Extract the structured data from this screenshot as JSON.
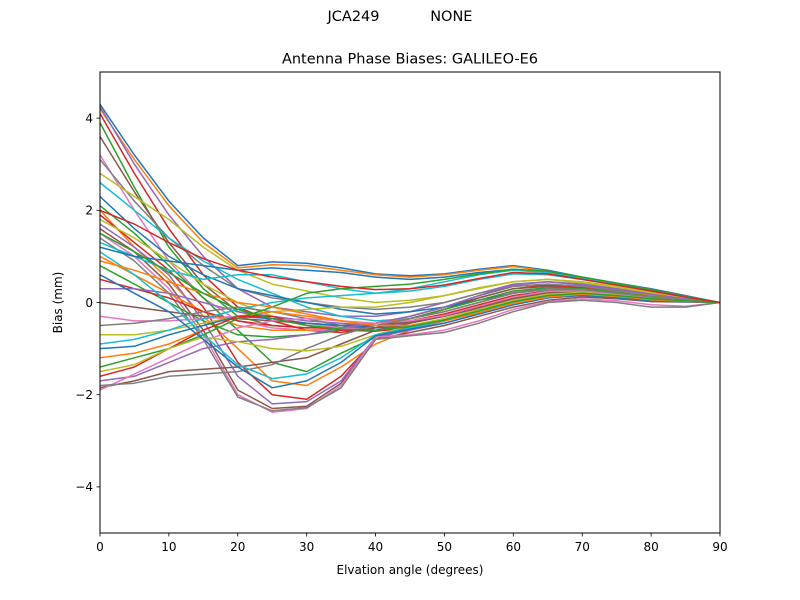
{
  "figure": {
    "suptitle_left": "JCA249",
    "suptitle_right": "NONE"
  },
  "chart_data": {
    "type": "line",
    "title": "Antenna Phase Biases: GALILEO-E6",
    "xlabel": "Elvation angle (degrees)",
    "ylabel": "Bias (mm)",
    "xlim": [
      0,
      90
    ],
    "ylim": [
      -5,
      5
    ],
    "xticks": [
      0,
      10,
      20,
      30,
      40,
      50,
      60,
      70,
      80,
      90
    ],
    "yticks": [
      -4,
      -2,
      0,
      2,
      4
    ],
    "ytick_labels": [
      "−4",
      "−2",
      "0",
      "2",
      "4"
    ],
    "grid": false,
    "legend": null,
    "x": [
      0,
      5,
      10,
      15,
      20,
      25,
      30,
      35,
      40,
      45,
      50,
      55,
      60,
      65,
      70,
      75,
      80,
      85,
      90
    ],
    "colors": [
      "#1f77b4",
      "#ff7f0e",
      "#2ca02c",
      "#d62728",
      "#9467bd",
      "#8c564b",
      "#e377c2",
      "#7f7f7f",
      "#bcbd22",
      "#17becf"
    ],
    "series": [
      {
        "values": [
          4.3,
          3.2,
          2.2,
          1.4,
          0.8,
          0.88,
          0.85,
          0.75,
          0.62,
          0.58,
          0.62,
          0.72,
          0.8,
          0.7,
          0.55,
          0.42,
          0.3,
          0.15,
          0.0
        ]
      },
      {
        "values": [
          4.2,
          3.1,
          2.1,
          1.3,
          0.75,
          0.82,
          0.8,
          0.7,
          0.6,
          0.55,
          0.6,
          0.7,
          0.78,
          0.68,
          0.52,
          0.4,
          0.28,
          0.13,
          0.0
        ]
      },
      {
        "values": [
          3.9,
          2.5,
          1.2,
          0.3,
          -0.3,
          -0.5,
          -0.55,
          -0.5,
          -0.45,
          -0.3,
          -0.1,
          0.15,
          0.35,
          0.4,
          0.35,
          0.25,
          0.15,
          0.08,
          0.0
        ]
      },
      {
        "values": [
          4.1,
          2.8,
          1.6,
          0.6,
          -0.1,
          -0.4,
          -0.6,
          -0.65,
          -0.55,
          -0.35,
          -0.15,
          0.1,
          0.3,
          0.38,
          0.32,
          0.22,
          0.12,
          0.06,
          0.0
        ]
      },
      {
        "values": [
          4.25,
          3.0,
          1.9,
          1.0,
          0.3,
          -0.1,
          -0.2,
          -0.3,
          -0.3,
          -0.2,
          0.0,
          0.2,
          0.4,
          0.45,
          0.38,
          0.28,
          0.18,
          0.08,
          0.0
        ]
      },
      {
        "values": [
          3.6,
          2.4,
          1.3,
          0.4,
          -0.2,
          -0.35,
          -0.45,
          -0.5,
          -0.45,
          -0.3,
          -0.1,
          0.1,
          0.3,
          0.35,
          0.3,
          0.2,
          0.1,
          0.05,
          0.0
        ]
      },
      {
        "values": [
          3.2,
          2.0,
          0.9,
          0.1,
          -0.4,
          -0.55,
          -0.6,
          -0.6,
          -0.5,
          -0.35,
          -0.2,
          0.0,
          0.22,
          0.3,
          0.28,
          0.2,
          0.1,
          0.05,
          0.0
        ]
      },
      {
        "values": [
          3.1,
          2.2,
          1.4,
          0.8,
          0.3,
          0.1,
          0.0,
          -0.1,
          -0.15,
          -0.1,
          0.0,
          0.2,
          0.35,
          0.4,
          0.35,
          0.25,
          0.15,
          0.07,
          0.0
        ]
      },
      {
        "values": [
          2.8,
          2.3,
          1.8,
          1.2,
          0.7,
          0.4,
          0.25,
          0.1,
          0.0,
          0.05,
          0.15,
          0.3,
          0.45,
          0.5,
          0.42,
          0.32,
          0.2,
          0.1,
          0.0
        ]
      },
      {
        "values": [
          2.6,
          2.0,
          1.4,
          0.9,
          0.5,
          0.2,
          -0.1,
          -0.3,
          -0.4,
          -0.35,
          -0.2,
          0.0,
          0.2,
          0.28,
          0.25,
          0.18,
          0.1,
          0.05,
          0.0
        ]
      },
      {
        "values": [
          2.3,
          1.6,
          1.0,
          0.6,
          0.3,
          0.15,
          0.0,
          -0.15,
          -0.25,
          -0.2,
          -0.1,
          0.05,
          0.2,
          0.3,
          0.28,
          0.2,
          0.12,
          0.06,
          0.0
        ]
      },
      {
        "values": [
          2.0,
          1.2,
          0.5,
          -0.3,
          -1.0,
          -1.7,
          -1.8,
          -1.4,
          -0.9,
          -0.6,
          -0.4,
          -0.2,
          0.0,
          0.15,
          0.2,
          0.15,
          0.08,
          0.04,
          0.0
        ]
      },
      {
        "values": [
          2.1,
          1.5,
          0.8,
          0.1,
          -0.6,
          -1.3,
          -1.5,
          -1.1,
          -0.75,
          -0.55,
          -0.35,
          -0.15,
          0.05,
          0.18,
          0.2,
          0.15,
          0.08,
          0.04,
          0.0
        ]
      },
      {
        "values": [
          1.9,
          1.3,
          0.7,
          -0.1,
          -1.3,
          -2.0,
          -2.1,
          -1.6,
          -0.8,
          -0.55,
          -0.4,
          -0.2,
          0.0,
          0.12,
          0.18,
          0.12,
          0.05,
          0.03,
          0.0
        ]
      },
      {
        "values": [
          1.7,
          1.2,
          0.6,
          -0.4,
          -1.6,
          -2.2,
          -2.15,
          -1.7,
          -0.75,
          -0.6,
          -0.45,
          -0.25,
          -0.05,
          0.1,
          0.15,
          0.1,
          0.04,
          0.02,
          0.0
        ]
      },
      {
        "values": [
          1.6,
          1.1,
          0.4,
          -0.6,
          -1.9,
          -2.3,
          -2.25,
          -1.75,
          -0.8,
          -0.65,
          -0.5,
          -0.3,
          -0.1,
          0.05,
          0.12,
          0.08,
          0.02,
          0.01,
          0.0
        ]
      },
      {
        "values": [
          1.5,
          1.0,
          0.3,
          -0.7,
          -2.0,
          -2.38,
          -2.3,
          -1.8,
          -0.75,
          -0.7,
          -0.6,
          -0.4,
          -0.15,
          0.02,
          0.08,
          0.04,
          -0.05,
          -0.08,
          0.0
        ]
      },
      {
        "values": [
          1.4,
          0.9,
          0.2,
          -0.8,
          -2.05,
          -2.35,
          -2.28,
          -1.85,
          -0.8,
          -0.72,
          -0.65,
          -0.45,
          -0.2,
          0.0,
          0.05,
          0.0,
          -0.1,
          -0.1,
          0.0
        ]
      },
      {
        "values": [
          1.8,
          1.4,
          0.9,
          0.4,
          0.0,
          -0.3,
          -0.5,
          -0.55,
          -0.5,
          -0.4,
          -0.25,
          -0.05,
          0.15,
          0.25,
          0.25,
          0.18,
          0.1,
          0.05,
          0.0
        ]
      },
      {
        "values": [
          1.3,
          1.0,
          0.7,
          0.5,
          0.6,
          0.6,
          0.45,
          0.3,
          0.2,
          0.25,
          0.35,
          0.5,
          0.62,
          0.6,
          0.5,
          0.38,
          0.25,
          0.12,
          0.0
        ]
      },
      {
        "values": [
          1.2,
          1.0,
          0.9,
          0.8,
          0.7,
          0.75,
          0.7,
          0.65,
          0.55,
          0.5,
          0.55,
          0.65,
          0.72,
          0.65,
          0.52,
          0.4,
          0.27,
          0.13,
          0.0
        ]
      },
      {
        "values": [
          1.0,
          0.6,
          0.2,
          -0.2,
          -0.5,
          -0.6,
          -0.6,
          -0.55,
          -0.45,
          -0.35,
          -0.2,
          0.0,
          0.2,
          0.3,
          0.3,
          0.22,
          0.14,
          0.07,
          0.0
        ]
      },
      {
        "values": [
          0.8,
          0.4,
          0.0,
          -0.4,
          -0.7,
          -0.75,
          -0.7,
          -0.6,
          -0.5,
          -0.35,
          -0.15,
          0.05,
          0.25,
          0.32,
          0.3,
          0.22,
          0.13,
          0.06,
          0.0
        ]
      },
      {
        "values": [
          0.5,
          0.3,
          0.1,
          -0.2,
          -0.4,
          -0.5,
          -0.55,
          -0.55,
          -0.5,
          -0.4,
          -0.25,
          -0.05,
          0.15,
          0.25,
          0.25,
          0.18,
          0.1,
          0.05,
          0.0
        ]
      },
      {
        "values": [
          0.3,
          0.3,
          0.2,
          0.0,
          -0.2,
          -0.3,
          -0.4,
          -0.45,
          -0.5,
          -0.45,
          -0.3,
          -0.1,
          0.1,
          0.2,
          0.22,
          0.16,
          0.08,
          0.04,
          0.0
        ]
      },
      {
        "values": [
          0.0,
          -0.1,
          -0.2,
          -0.3,
          -0.35,
          -0.4,
          -0.45,
          -0.5,
          -0.5,
          -0.42,
          -0.3,
          -0.12,
          0.08,
          0.2,
          0.22,
          0.16,
          0.08,
          0.04,
          0.0
        ]
      },
      {
        "values": [
          -0.3,
          -0.4,
          -0.4,
          -0.35,
          -0.3,
          -0.35,
          -0.45,
          -0.55,
          -0.6,
          -0.5,
          -0.35,
          -0.15,
          0.05,
          0.18,
          0.2,
          0.14,
          0.07,
          0.03,
          0.0
        ]
      },
      {
        "values": [
          -0.5,
          -0.45,
          -0.35,
          -0.2,
          -0.1,
          -0.2,
          -0.35,
          -0.5,
          -0.6,
          -0.55,
          -0.4,
          -0.2,
          0.0,
          0.15,
          0.18,
          0.12,
          0.06,
          0.03,
          0.0
        ]
      },
      {
        "values": [
          -0.7,
          -0.7,
          -0.6,
          -0.45,
          -0.3,
          -0.2,
          -0.15,
          -0.1,
          -0.1,
          0.0,
          0.15,
          0.32,
          0.45,
          0.5,
          0.45,
          0.35,
          0.22,
          0.1,
          0.0
        ]
      },
      {
        "values": [
          -0.9,
          -0.8,
          -0.6,
          -0.35,
          -0.15,
          0.0,
          0.1,
          0.15,
          0.2,
          0.3,
          0.45,
          0.6,
          0.7,
          0.65,
          0.52,
          0.4,
          0.27,
          0.13,
          0.0
        ]
      },
      {
        "values": [
          -1.0,
          -0.95,
          -0.7,
          -0.5,
          -0.3,
          -0.35,
          -0.45,
          -0.5,
          -0.55,
          -0.5,
          -0.38,
          -0.2,
          0.0,
          0.15,
          0.2,
          0.15,
          0.08,
          0.04,
          0.0
        ]
      },
      {
        "values": [
          -1.2,
          -1.1,
          -0.9,
          -0.6,
          -0.3,
          -0.2,
          -0.3,
          -0.4,
          -0.5,
          -0.5,
          -0.4,
          -0.22,
          -0.02,
          0.12,
          0.18,
          0.13,
          0.07,
          0.03,
          0.0
        ]
      },
      {
        "values": [
          -1.4,
          -1.2,
          -1.0,
          -0.7,
          -0.35,
          -0.1,
          0.2,
          0.3,
          0.35,
          0.4,
          0.5,
          0.62,
          0.72,
          0.68,
          0.55,
          0.42,
          0.28,
          0.13,
          0.0
        ]
      },
      {
        "values": [
          -1.6,
          -1.4,
          -1.0,
          -0.6,
          -0.3,
          -0.3,
          -0.5,
          -0.6,
          -0.62,
          -0.55,
          -0.4,
          -0.2,
          0.0,
          0.15,
          0.2,
          0.14,
          0.07,
          0.03,
          0.0
        ]
      },
      {
        "values": [
          -1.7,
          -1.6,
          -1.3,
          -1.0,
          -0.85,
          -0.8,
          -0.7,
          -0.55,
          -0.45,
          -0.3,
          -0.1,
          0.15,
          0.38,
          0.45,
          0.4,
          0.3,
          0.18,
          0.08,
          0.0
        ]
      },
      {
        "values": [
          -1.85,
          -1.7,
          -1.5,
          -1.45,
          -1.4,
          -1.3,
          -1.2,
          -0.9,
          -0.6,
          -0.45,
          -0.3,
          -0.1,
          0.1,
          0.22,
          0.25,
          0.18,
          0.1,
          0.05,
          0.0
        ]
      },
      {
        "values": [
          -1.9,
          -1.55,
          -1.2,
          -0.85,
          -0.55,
          -0.4,
          -0.35,
          -0.4,
          -0.45,
          -0.4,
          -0.28,
          -0.08,
          0.12,
          0.24,
          0.25,
          0.18,
          0.1,
          0.05,
          0.0
        ]
      },
      {
        "values": [
          -1.8,
          -1.75,
          -1.6,
          -1.55,
          -1.5,
          -1.35,
          -1.0,
          -0.7,
          -0.5,
          -0.35,
          -0.2,
          0.0,
          0.2,
          0.3,
          0.28,
          0.2,
          0.12,
          0.06,
          0.0
        ]
      },
      {
        "values": [
          -1.5,
          -1.35,
          -1.0,
          -0.75,
          -0.85,
          -1.0,
          -1.05,
          -0.95,
          -0.7,
          -0.5,
          -0.35,
          -0.15,
          0.05,
          0.18,
          0.22,
          0.16,
          0.08,
          0.04,
          0.0
        ]
      },
      {
        "values": [
          1.1,
          0.6,
          0.0,
          -0.7,
          -1.35,
          -1.65,
          -1.55,
          -1.2,
          -0.7,
          -0.55,
          -0.4,
          -0.2,
          0.0,
          0.15,
          0.2,
          0.14,
          0.07,
          0.03,
          0.0
        ]
      },
      {
        "values": [
          0.6,
          0.2,
          -0.2,
          -0.8,
          -1.4,
          -1.85,
          -1.7,
          -1.3,
          -0.72,
          -0.58,
          -0.45,
          -0.25,
          -0.05,
          0.1,
          0.16,
          0.1,
          0.04,
          0.02,
          0.0
        ]
      },
      {
        "values": [
          0.9,
          0.7,
          0.45,
          0.2,
          0.0,
          -0.1,
          -0.25,
          -0.4,
          -0.5,
          -0.5,
          -0.4,
          -0.22,
          -0.02,
          0.12,
          0.18,
          0.13,
          0.06,
          0.03,
          0.0
        ]
      },
      {
        "values": [
          1.5,
          1.1,
          0.65,
          0.2,
          -0.15,
          -0.35,
          -0.5,
          -0.58,
          -0.6,
          -0.52,
          -0.38,
          -0.18,
          0.02,
          0.15,
          0.2,
          0.15,
          0.08,
          0.04,
          0.0
        ]
      },
      {
        "values": [
          2.0,
          1.7,
          1.3,
          0.95,
          0.7,
          0.55,
          0.45,
          0.35,
          0.28,
          0.3,
          0.38,
          0.52,
          0.65,
          0.62,
          0.5,
          0.38,
          0.25,
          0.12,
          0.0
        ]
      }
    ]
  }
}
